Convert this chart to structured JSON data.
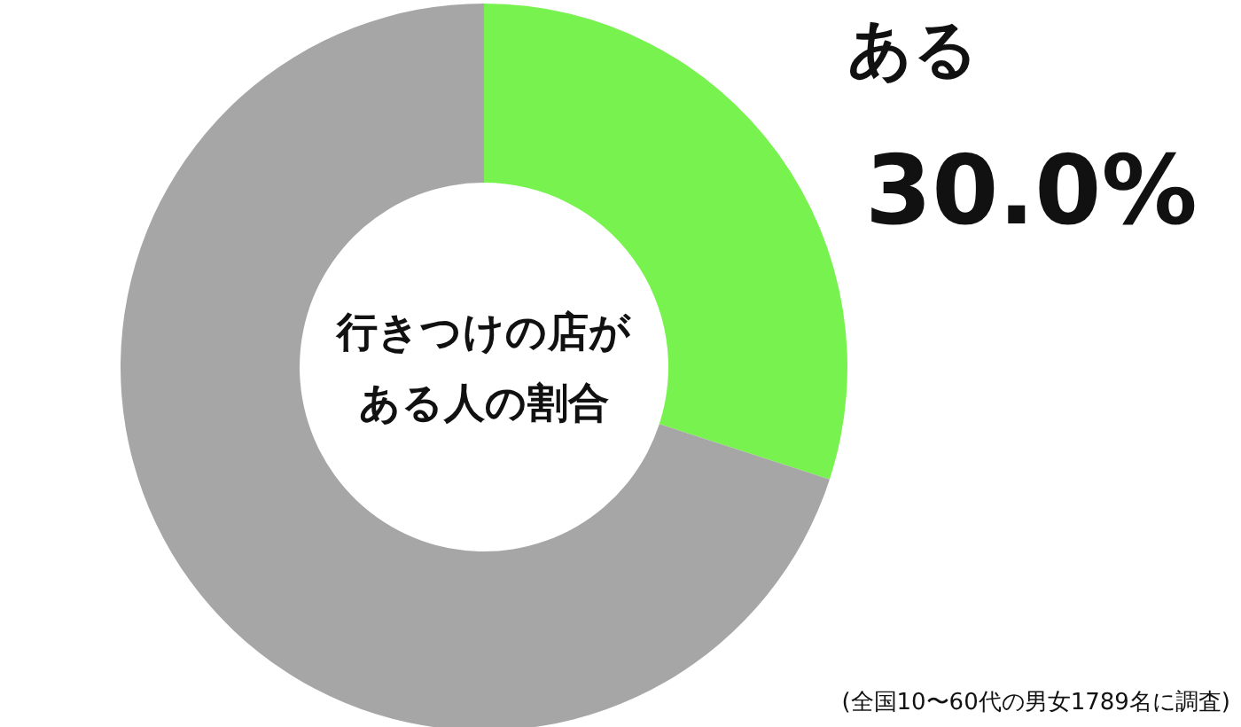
{
  "chart_data": {
    "type": "donut",
    "title": "行きつけの店がある人の割合",
    "categories": [
      "ある",
      null
    ],
    "values": [
      30.0,
      70.0
    ],
    "colors": [
      "#77f24f",
      "#a6a6a6"
    ],
    "value_labels": [
      "30.0%",
      null
    ],
    "annotations": [
      "(全国10〜60代の男女1789名に調査)"
    ]
  }
}
